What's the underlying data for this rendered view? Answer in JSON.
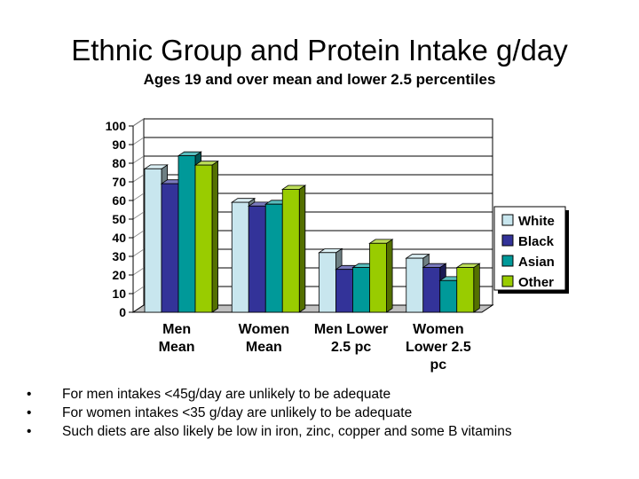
{
  "slide": {
    "bullet_glyph": "•",
    "bullets": [
      "For men intakes <45g/day are unlikely to be adequate",
      "For women intakes <35 g/day are unlikely to be adequate",
      "Such diets are also likely be low in iron, zinc, copper and some B vitamins"
    ]
  },
  "chart_data": {
    "type": "bar",
    "title": "Ethnic Group and Protein Intake g/day",
    "subtitle": "Ages 19 and over mean and lower 2.5 percentiles",
    "categories": [
      [
        "Men",
        "Mean"
      ],
      [
        "Women",
        "Mean"
      ],
      [
        "Men Lower",
        "2.5 pc"
      ],
      [
        "Women",
        "Lower 2.5",
        "pc"
      ]
    ],
    "series": [
      {
        "name": "White",
        "color": "#c8e6ee",
        "values": [
          77,
          59,
          32,
          29
        ]
      },
      {
        "name": "Black",
        "color": "#333399",
        "values": [
          69,
          57,
          23,
          24
        ]
      },
      {
        "name": "Asian",
        "color": "#009999",
        "values": [
          84,
          58,
          24,
          17
        ]
      },
      {
        "name": "Other",
        "color": "#99cc00",
        "values": [
          79,
          66,
          37,
          24
        ]
      }
    ],
    "ylim": [
      0,
      100
    ],
    "yticks": [
      0,
      10,
      20,
      30,
      40,
      50,
      60,
      70,
      80,
      90,
      100
    ],
    "grid": true,
    "legend_position": "right",
    "style": "3d-clustered-column"
  }
}
